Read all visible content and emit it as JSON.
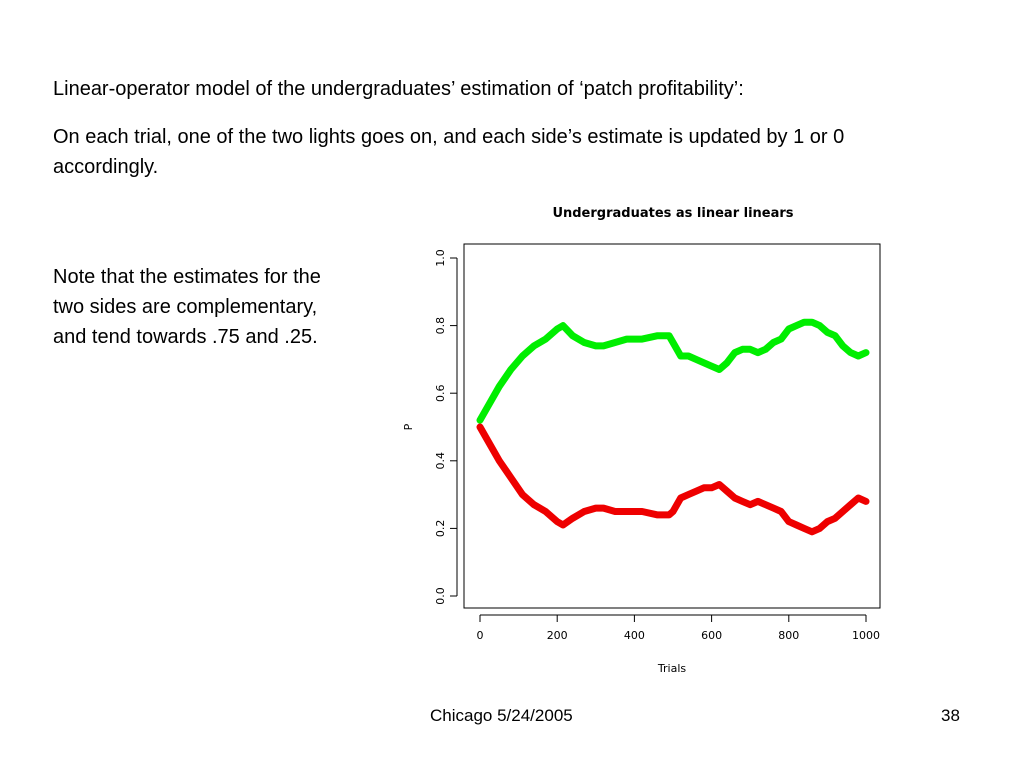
{
  "slide": {
    "heading": "Linear-operator model of the undergraduates’ estimation of ‘patch profitability’:",
    "description": "On each trial, one of the two lights goes on, and each side’s estimate is updated by 1 or 0 accordingly.",
    "note": "Note that the estimates for the two sides are complementary, and tend towards .75 and .25.",
    "footer": "Chicago 5/24/2005",
    "page_number": "38"
  },
  "chart_data": {
    "type": "line",
    "title": "Undergraduates as linear linears",
    "xlabel": "Trials",
    "ylabel": "P",
    "xlim": [
      0,
      1000
    ],
    "ylim": [
      0,
      1
    ],
    "xticks": [
      "0",
      "200",
      "400",
      "600",
      "800",
      "1000"
    ],
    "yticks": [
      "0.0",
      "0.2",
      "0.4",
      "0.6",
      "0.8",
      "1.0"
    ],
    "grid": false,
    "legend": "none",
    "series": [
      {
        "color": "#00ee00",
        "x": [
          0,
          20,
          50,
          80,
          110,
          140,
          170,
          200,
          215,
          240,
          270,
          300,
          320,
          350,
          380,
          420,
          460,
          490,
          500,
          520,
          540,
          560,
          580,
          600,
          620,
          640,
          660,
          680,
          700,
          720,
          740,
          760,
          780,
          800,
          820,
          840,
          860,
          880,
          900,
          920,
          940,
          960,
          980,
          1000
        ],
        "y": [
          0.52,
          0.56,
          0.62,
          0.67,
          0.71,
          0.74,
          0.76,
          0.79,
          0.8,
          0.77,
          0.75,
          0.74,
          0.74,
          0.75,
          0.76,
          0.76,
          0.77,
          0.77,
          0.75,
          0.71,
          0.71,
          0.7,
          0.69,
          0.68,
          0.67,
          0.69,
          0.72,
          0.73,
          0.73,
          0.72,
          0.73,
          0.75,
          0.76,
          0.79,
          0.8,
          0.81,
          0.81,
          0.8,
          0.78,
          0.77,
          0.74,
          0.72,
          0.71,
          0.72
        ]
      },
      {
        "color": "#ee0000",
        "x": [
          0,
          20,
          50,
          80,
          110,
          140,
          170,
          200,
          215,
          240,
          270,
          300,
          320,
          350,
          380,
          420,
          460,
          490,
          500,
          520,
          540,
          560,
          580,
          600,
          620,
          640,
          660,
          680,
          700,
          720,
          740,
          760,
          780,
          800,
          820,
          840,
          860,
          880,
          900,
          920,
          940,
          960,
          980,
          1000
        ],
        "y": [
          0.5,
          0.46,
          0.4,
          0.35,
          0.3,
          0.27,
          0.25,
          0.22,
          0.21,
          0.23,
          0.25,
          0.26,
          0.26,
          0.25,
          0.25,
          0.25,
          0.24,
          0.24,
          0.25,
          0.29,
          0.3,
          0.31,
          0.32,
          0.32,
          0.33,
          0.31,
          0.29,
          0.28,
          0.27,
          0.28,
          0.27,
          0.26,
          0.25,
          0.22,
          0.21,
          0.2,
          0.19,
          0.2,
          0.22,
          0.23,
          0.25,
          0.27,
          0.29,
          0.28
        ]
      }
    ]
  }
}
